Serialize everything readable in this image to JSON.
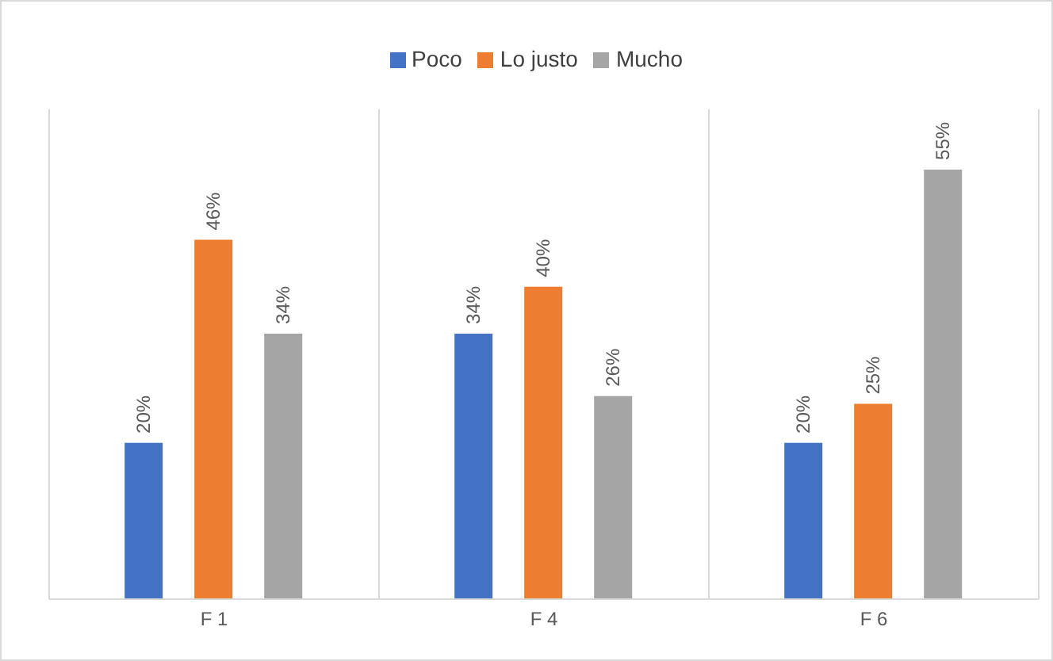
{
  "chart_data": {
    "type": "bar",
    "categories": [
      "F 1",
      "F 4",
      "F 6"
    ],
    "series": [
      {
        "name": "Poco",
        "color": "#4472c4",
        "values": [
          20,
          34,
          20
        ],
        "value_labels": [
          "20%",
          "34%",
          "20%"
        ]
      },
      {
        "name": "Lo justo",
        "color": "#ed7d31",
        "values": [
          46,
          40,
          25
        ],
        "value_labels": [
          "46%",
          "40%",
          "25%"
        ]
      },
      {
        "name": "Mucho",
        "color": "#a5a5a5",
        "values": [
          34,
          26,
          55
        ],
        "value_labels": [
          "34%",
          "26%",
          "55%"
        ]
      }
    ],
    "grid": "x",
    "legend": "top",
    "tick_labels": "x"
  }
}
